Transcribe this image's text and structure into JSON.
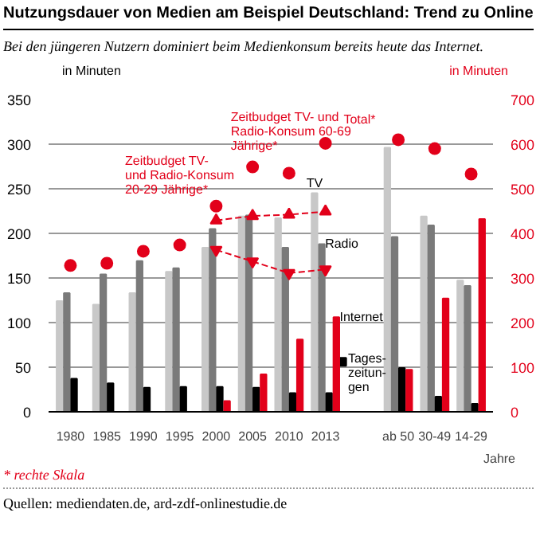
{
  "chart_data": {
    "type": "bar",
    "title": "Nutzungsdauer von Medien am Beispiel Deutschland: Trend zu Online",
    "subtitle": "Bei den jüngeren Nutzern dominiert beim Medienkonsum bereits heute das Internet.",
    "ylabel": "in Minuten",
    "y2label": "in Minuten",
    "categories": [
      "1980",
      "1985",
      "1990",
      "1995",
      "2000",
      "2005",
      "2010",
      "2013",
      null,
      "ab 50",
      "30-49",
      "14-29"
    ],
    "series": [
      {
        "name": "TV",
        "color": "#c8c8c8",
        "values": [
          124,
          120,
          133,
          157,
          184,
          219,
          217,
          245,
          null,
          296,
          219,
          147
        ]
      },
      {
        "name": "Radio",
        "color": "#7a7a7a",
        "values": [
          133,
          154,
          169,
          161,
          205,
          220,
          184,
          188,
          null,
          196,
          209,
          141
        ]
      },
      {
        "name": "Tages-zeitun-gen",
        "color": "#000000",
        "values": [
          37,
          32,
          27,
          28,
          28,
          27,
          21,
          21,
          null,
          49,
          17,
          9
        ]
      },
      {
        "name": "Internet",
        "color": "#e2001a",
        "values": [
          null,
          null,
          null,
          null,
          12,
          42,
          81,
          106,
          null,
          47,
          127,
          216
        ]
      },
      {
        "type": "scatter",
        "axis": "y2",
        "marker": "circle",
        "color": "#e2001a",
        "values": [
          328,
          333,
          360,
          374,
          461,
          549,
          535,
          602,
          null,
          610,
          590,
          533
        ]
      },
      {
        "type": "line",
        "axis": "y2",
        "marker": "triangle",
        "line_style": "dashed",
        "color": "#e2001a",
        "values": [
          null,
          null,
          null,
          null,
          429,
          439,
          442,
          449,
          null,
          null,
          null,
          null
        ]
      },
      {
        "type": "line",
        "axis": "y2",
        "marker": "triangle",
        "line_style": "dashed",
        "color": "#e2001a",
        "values": [
          null,
          null,
          null,
          null,
          363,
          337,
          311,
          319,
          null,
          null,
          null,
          null
        ]
      }
    ],
    "ylim": [
      0,
      350
    ],
    "yticks": [
      0,
      50,
      100,
      150,
      200,
      250,
      300,
      350
    ],
    "y2lim": [
      0,
      700
    ],
    "y2ticks": [
      0,
      100,
      200,
      300,
      400,
      500,
      600,
      700
    ],
    "grid": "y",
    "annotations": [
      "Total*",
      "Zeitbudget TV- und Radio-Konsum 60-69 Jährige*",
      "Zeitbudget TV- und Radio-Konsum 20-29 Jährige*",
      "Jahre",
      "* rechte Skala",
      "Quellen: mediendaten.de, ard-zdf-onlinestudie.de"
    ]
  }
}
